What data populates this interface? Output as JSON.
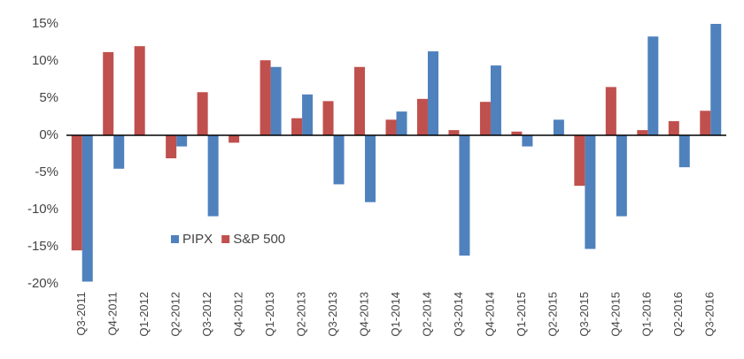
{
  "chart_data": {
    "type": "bar",
    "categories": [
      "Q3-2011",
      "Q4-2011",
      "Q1-2012",
      "Q2-2012",
      "Q3-2012",
      "Q4-2012",
      "Q1-2013",
      "Q2-2013",
      "Q3-2013",
      "Q4-2013",
      "Q1-2014",
      "Q2-2014",
      "Q3-2014",
      "Q4-2014",
      "Q1-2015",
      "Q2-2015",
      "Q3-2015",
      "Q4-2015",
      "Q1-2016",
      "Q2-2016",
      "Q3-2016"
    ],
    "series": [
      {
        "name": "PIPX",
        "color": "#4f81bd",
        "values": [
          -19.7,
          -4.5,
          0,
          -1.5,
          -10.9,
          0,
          9.2,
          5.5,
          -6.6,
          -9,
          3.2,
          11.3,
          -16.2,
          9.4,
          -1.5,
          2.1,
          -15.3,
          -10.9,
          13.3,
          -4.3,
          15.5
        ]
      },
      {
        "name": "S&P 500",
        "color": "#c0504d",
        "values": [
          -15.5,
          11.2,
          12,
          -3.1,
          5.8,
          -1,
          10.1,
          2.3,
          4.6,
          9.2,
          2.1,
          4.9,
          0.7,
          4.5,
          0.5,
          0,
          -6.8,
          6.5,
          0.7,
          1.9,
          3.3
        ]
      }
    ],
    "ylim": [
      -20,
      15
    ],
    "yticks": [
      {
        "value": -20,
        "label": "-20%"
      },
      {
        "value": -15,
        "label": "-15%"
      },
      {
        "value": -10,
        "label": "-10%"
      },
      {
        "value": -5,
        "label": "-5%"
      },
      {
        "value": 0,
        "label": "0%"
      },
      {
        "value": 5,
        "label": "5%"
      },
      {
        "value": 10,
        "label": "10%"
      },
      {
        "value": 15,
        "label": "15%"
      }
    ],
    "grid": false
  }
}
